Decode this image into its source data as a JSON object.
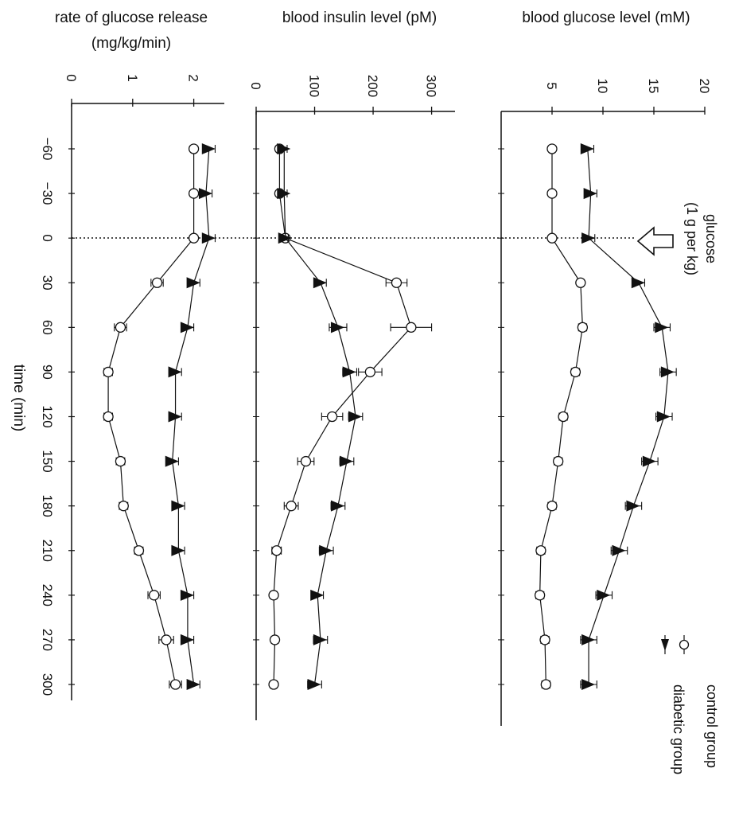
{
  "chart_data": {
    "type": "line",
    "x": {
      "label": "time (min)",
      "ticks": [
        -60,
        -30,
        0,
        30,
        60,
        90,
        120,
        150,
        180,
        210,
        240,
        270,
        300
      ],
      "tick_labels": [
        "−60",
        "−30",
        "0",
        "30",
        "60",
        "90",
        "120",
        "150",
        "180",
        "210",
        "240",
        "270",
        "300"
      ],
      "range": [
        -80,
        320
      ]
    },
    "legend": {
      "placement": "bottom-right",
      "entries": [
        {
          "label": "control group",
          "marker": "open-circle"
        },
        {
          "label": "diabetic group",
          "marker": "filled-triangle"
        }
      ]
    },
    "annotation": {
      "line1": "glucose",
      "line2": "(1 g per kg)",
      "x": 0
    },
    "panels": [
      {
        "title": "blood glucose level (mM)",
        "ylim": [
          0,
          20
        ],
        "yticks": [
          5,
          10,
          15,
          20
        ],
        "ytick_labels": [
          "5",
          "10",
          "15",
          "20"
        ],
        "series": [
          {
            "name": "control group",
            "x": [
              -60,
              -30,
              0,
              30,
              60,
              90,
              120,
              150,
              180,
              210,
              240,
              270,
              300
            ],
            "y": [
              5.0,
              5.0,
              5.0,
              7.8,
              8.0,
              7.3,
              6.1,
              5.6,
              5.0,
              3.9,
              3.8,
              4.3,
              4.4
            ],
            "err": [
              0,
              0,
              0,
              0.3,
              0.4,
              0.4,
              0.4,
              0.4,
              0.4,
              0.4,
              0.4,
              0.4,
              0.4
            ]
          },
          {
            "name": "diabetic group",
            "x": [
              -60,
              -30,
              0,
              30,
              60,
              90,
              120,
              150,
              180,
              210,
              240,
              270,
              300
            ],
            "y": [
              8.5,
              8.8,
              8.6,
              13.5,
              15.8,
              16.4,
              16.0,
              14.6,
              13.0,
              11.6,
              10.1,
              8.6,
              8.6
            ],
            "err": [
              0.6,
              0.6,
              0.6,
              0.6,
              0.8,
              0.8,
              0.8,
              0.8,
              0.8,
              0.8,
              0.8,
              0.8,
              0.8
            ]
          }
        ]
      },
      {
        "title": "blood insulin level (pM)",
        "ylim": [
          0,
          340
        ],
        "yticks": [
          0,
          100,
          200,
          300
        ],
        "ytick_labels": [
          "0",
          "100",
          "200",
          "300"
        ],
        "series": [
          {
            "name": "control group",
            "x": [
              -60,
              -30,
              0,
              30,
              60,
              90,
              120,
              150,
              180,
              210,
              240,
              270,
              300
            ],
            "y": [
              40,
              40,
              50,
              240,
              265,
              195,
              130,
              85,
              60,
              35,
              30,
              32,
              30
            ],
            "err": [
              0,
              0,
              0,
              18,
              35,
              20,
              18,
              14,
              12,
              8,
              6,
              6,
              6
            ]
          },
          {
            "name": "diabetic group",
            "x": [
              -60,
              -30,
              0,
              30,
              60,
              90,
              120,
              150,
              180,
              210,
              240,
              270,
              300
            ],
            "y": [
              48,
              48,
              50,
              110,
              140,
              160,
              170,
              155,
              140,
              120,
              105,
              110,
              100
            ],
            "err": [
              5,
              5,
              5,
              10,
              15,
              12,
              12,
              12,
              12,
              12,
              10,
              12,
              12
            ]
          }
        ]
      },
      {
        "title_line1": "rate of glucose release",
        "title_line2": "(mg/kg/min)",
        "ylim": [
          0,
          2.5
        ],
        "yticks": [
          0,
          1,
          2
        ],
        "ytick_labels": [
          "0",
          "1",
          "2"
        ],
        "series": [
          {
            "name": "control group",
            "x": [
              -60,
              -30,
              0,
              30,
              60,
              90,
              120,
              150,
              180,
              210,
              240,
              270,
              300
            ],
            "y": [
              2.0,
              2.0,
              2.0,
              1.4,
              0.8,
              0.6,
              0.6,
              0.8,
              0.85,
              1.1,
              1.35,
              1.55,
              1.7
            ],
            "err": [
              0,
              0,
              0,
              0.1,
              0.1,
              0.07,
              0.07,
              0.07,
              0.07,
              0.07,
              0.1,
              0.12,
              0.1
            ]
          },
          {
            "name": "diabetic group",
            "x": [
              -60,
              -30,
              0,
              30,
              60,
              90,
              120,
              150,
              180,
              210,
              240,
              270,
              300
            ],
            "y": [
              2.25,
              2.2,
              2.25,
              2.0,
              1.9,
              1.7,
              1.7,
              1.65,
              1.75,
              1.75,
              1.9,
              1.9,
              2.0
            ],
            "err": [
              0.1,
              0.1,
              0.1,
              0.1,
              0.1,
              0.1,
              0.1,
              0.1,
              0.1,
              0.1,
              0.1,
              0.1,
              0.1
            ]
          }
        ]
      }
    ]
  }
}
